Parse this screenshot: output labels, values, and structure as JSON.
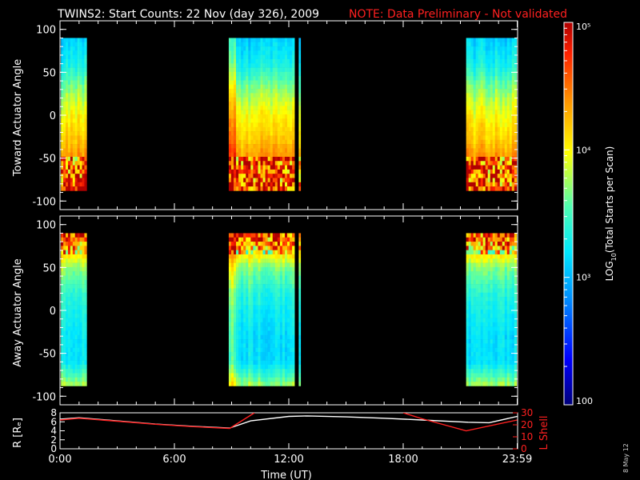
{
  "title": "TWINS2: Start Counts: 22 Nov (day 326), 2009",
  "note": "NOTE: Data Preliminary - Not validated",
  "stamp": "8 May 12",
  "colors": {
    "note": "#ff2020",
    "axis": "#ffffff",
    "lshell": "#ff2020",
    "r_line": "#ffffff",
    "background": "#000000"
  },
  "colorbar": {
    "label_prefix": "LOG",
    "label_sub": "10",
    "label_suffix": "(Total Starts per Scan)",
    "tick_labels": [
      "100",
      "10³",
      "10⁴",
      "10⁵"
    ],
    "range_log": [
      2,
      5
    ]
  },
  "panels": {
    "toward": {
      "ylabel": "Toward Actuator Angle"
    },
    "away": {
      "ylabel": "Away Actuator Angle"
    },
    "orbit": {
      "ylabel_left": "R [Rₑ]",
      "ylabel_right": "L Shell"
    }
  },
  "xaxis": {
    "label": "Time (UT)",
    "tick_labels": [
      "0:00",
      "6:00",
      "12:00",
      "18:00",
      "23:59"
    ],
    "tick_hours": [
      0,
      6,
      12,
      18,
      23.98
    ]
  },
  "chart_data": [
    {
      "type": "heatmap",
      "ylabel": "Toward Actuator Angle",
      "ylim": [
        -110,
        110
      ],
      "y_ticks": [
        100,
        50,
        0,
        -50,
        -100
      ],
      "x_unit": "hours UT",
      "angle_range": [
        -88,
        90
      ],
      "data_intervals_hours": [
        [
          0.05,
          1.4
        ],
        [
          8.85,
          12.3
        ],
        [
          12.52,
          12.62
        ],
        [
          21.3,
          23.95
        ]
      ],
      "log_counts_profile": {
        "angles": [
          90,
          60,
          30,
          0,
          -30,
          -50,
          -60,
          -75,
          -88
        ],
        "values": [
          3.1,
          3.3,
          3.7,
          4.0,
          4.2,
          4.4,
          4.6,
          4.5,
          4.7
        ]
      }
    },
    {
      "type": "heatmap",
      "ylabel": "Away Actuator Angle",
      "ylim": [
        -110,
        110
      ],
      "y_ticks": [
        100,
        50,
        0,
        -50,
        -100
      ],
      "x_unit": "hours UT",
      "angle_range": [
        -88,
        90
      ],
      "data_intervals_hours": [
        [
          0.05,
          1.4
        ],
        [
          8.85,
          12.3
        ],
        [
          12.52,
          12.62
        ],
        [
          21.3,
          23.95
        ]
      ],
      "log_counts_profile": {
        "angles": [
          90,
          80,
          70,
          50,
          20,
          0,
          -30,
          -60,
          -75,
          -88
        ],
        "values": [
          4.7,
          4.5,
          4.2,
          3.7,
          3.4,
          3.3,
          3.2,
          3.2,
          3.5,
          3.8
        ]
      }
    },
    {
      "type": "line",
      "xlabel": "Time (UT)",
      "ylabel": "R [Rₑ]",
      "ylabel_right": "L Shell",
      "ylim": [
        0,
        8
      ],
      "y_ticks": [
        0,
        2,
        4,
        6,
        8
      ],
      "ylim_right": [
        0,
        30
      ],
      "y_ticks_right": [
        0,
        10,
        20,
        30
      ],
      "series": [
        {
          "name": "R [Rₑ]",
          "axis": "left",
          "x": [
            0,
            1,
            3,
            5,
            7,
            8.9,
            10,
            12,
            13,
            15,
            17,
            19,
            21.4,
            22.5,
            23.98
          ],
          "y": [
            6.6,
            6.9,
            6.2,
            5.5,
            5.0,
            4.6,
            6.2,
            7.2,
            7.3,
            7.1,
            6.8,
            6.4,
            5.9,
            5.8,
            7.2
          ]
        },
        {
          "name": "L Shell",
          "axis": "right",
          "segments": [
            {
              "x": [
                0,
                1,
                3,
                5,
                7,
                8.9,
                10.2
              ],
              "y": [
                24,
                25.5,
                23,
                20.5,
                18.5,
                17,
                30
              ]
            },
            {
              "x": [
                18.0,
                19,
                21.3,
                23.98
              ],
              "y": [
                30,
                25,
                15,
                24
              ]
            }
          ]
        }
      ]
    }
  ]
}
